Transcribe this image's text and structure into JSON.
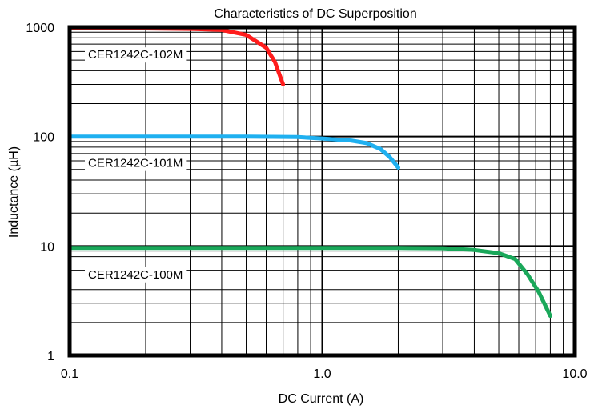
{
  "chart_data": {
    "type": "line",
    "title": "Characteristics of DC Superposition",
    "xlabel": "DC Current (A)",
    "ylabel": "Inductance (µH)",
    "x_scale": "log",
    "y_scale": "log",
    "xlim": [
      0.1,
      10.0
    ],
    "ylim": [
      1,
      1000
    ],
    "x_ticks": [
      {
        "value": 0.1,
        "label": "0.1"
      },
      {
        "value": 1.0,
        "label": "1.0"
      },
      {
        "value": 10.0,
        "label": "10.0"
      }
    ],
    "y_ticks": [
      {
        "value": 1,
        "label": "1"
      },
      {
        "value": 10,
        "label": "10"
      },
      {
        "value": 100,
        "label": "100"
      },
      {
        "value": 1000,
        "label": "1000"
      }
    ],
    "grid": true,
    "series": [
      {
        "name": "CER1242C-102M",
        "color": "#ff1c1c",
        "points": [
          [
            0.1,
            980
          ],
          [
            0.2,
            975
          ],
          [
            0.3,
            965
          ],
          [
            0.4,
            945
          ],
          [
            0.5,
            850
          ],
          [
            0.6,
            650
          ],
          [
            0.65,
            480
          ],
          [
            0.7,
            300
          ]
        ]
      },
      {
        "name": "CER1242C-101M",
        "color": "#1fb0f0",
        "points": [
          [
            0.1,
            100
          ],
          [
            0.5,
            100
          ],
          [
            0.8,
            99
          ],
          [
            1.0,
            96
          ],
          [
            1.3,
            92
          ],
          [
            1.5,
            87
          ],
          [
            1.7,
            77
          ],
          [
            1.85,
            65
          ],
          [
            2.0,
            52
          ]
        ]
      },
      {
        "name": "CER1242C-100M",
        "color": "#1aa85a",
        "points": [
          [
            0.1,
            9.6
          ],
          [
            1.0,
            9.6
          ],
          [
            2.0,
            9.6
          ],
          [
            3.0,
            9.55
          ],
          [
            4.0,
            9.2
          ],
          [
            5.0,
            8.6
          ],
          [
            5.8,
            7.6
          ],
          [
            6.5,
            5.5
          ],
          [
            7.2,
            3.8
          ],
          [
            8.0,
            2.3
          ]
        ]
      }
    ]
  }
}
